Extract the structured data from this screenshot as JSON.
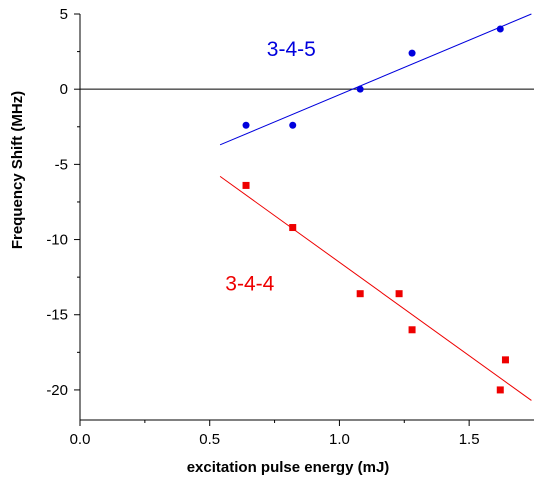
{
  "chart_data": {
    "type": "scatter",
    "xlabel": "excitation pulse energy (mJ)",
    "ylabel": "Frequency Shift (MHz)",
    "xlim": [
      0.0,
      1.75
    ],
    "ylim": [
      -22,
      5
    ],
    "xticks": [
      0.0,
      0.5,
      1.0,
      1.5
    ],
    "xtick_labels": [
      "0.0",
      "0.5",
      "1.0",
      "1.5"
    ],
    "yticks": [
      5,
      0,
      -5,
      -10,
      -15,
      -20
    ],
    "ytick_labels": [
      "5",
      "0",
      "-5",
      "-10",
      "-15",
      "-20"
    ],
    "zero_line": 0,
    "grid": false,
    "series": [
      {
        "name": "3-4-5",
        "color": "#0000dd",
        "marker": "circle",
        "x": [
          0.64,
          0.82,
          1.08,
          1.28,
          1.62
        ],
        "y": [
          -2.4,
          -2.4,
          0.0,
          2.4,
          4.0
        ],
        "fit": {
          "x": [
            0.54,
            1.74
          ],
          "y": [
            -3.7,
            5.0
          ]
        }
      },
      {
        "name": "3-4-4",
        "color": "#ee0000",
        "marker": "square",
        "x": [
          0.64,
          0.82,
          1.08,
          1.23,
          1.28,
          1.62,
          1.64
        ],
        "y": [
          -6.4,
          -9.2,
          -13.6,
          -13.6,
          -16.0,
          -20.0,
          -18.0
        ],
        "fit": {
          "x": [
            0.54,
            1.74
          ],
          "y": [
            -5.8,
            -20.7
          ]
        }
      }
    ],
    "annotations": [
      {
        "text": "3-4-5",
        "x": 0.72,
        "y": 2.2,
        "color": "#0000dd"
      },
      {
        "text": "3-4-4",
        "x": 0.56,
        "y": -13.4,
        "color": "#ee0000"
      }
    ]
  }
}
